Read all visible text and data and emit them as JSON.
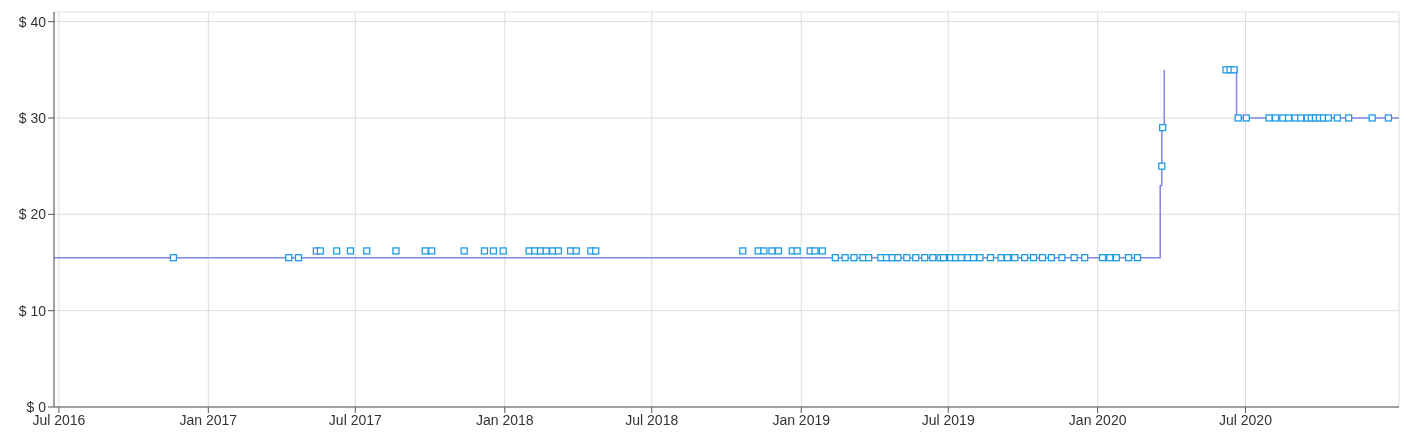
{
  "chart_data": {
    "type": "step",
    "xlim": [
      "2016-06-25",
      "2021-01-06"
    ],
    "xticks": [
      {
        "value": "2016-07-01",
        "label": "Jul 2016"
      },
      {
        "value": "2017-01-01",
        "label": "Jan 2017"
      },
      {
        "value": "2017-07-01",
        "label": "Jul 2017"
      },
      {
        "value": "2018-01-01",
        "label": "Jan 2018"
      },
      {
        "value": "2018-07-01",
        "label": "Jul 2018"
      },
      {
        "value": "2019-01-01",
        "label": "Jan 2019"
      },
      {
        "value": "2019-07-01",
        "label": "Jul 2019"
      },
      {
        "value": "2020-01-01",
        "label": "Jan 2020"
      },
      {
        "value": "2020-07-01",
        "label": "Jul 2020"
      }
    ],
    "ylim": [
      0,
      41
    ],
    "yticks": [
      {
        "value": 0,
        "label": "$ 0"
      },
      {
        "value": 10,
        "label": "$ 10"
      },
      {
        "value": 20,
        "label": "$ 20"
      },
      {
        "value": 30,
        "label": "$ 30"
      },
      {
        "value": 40,
        "label": "$ 40"
      }
    ],
    "grid": true,
    "series": [
      {
        "color": "#8585e0",
        "marker": "none",
        "x": [
          "2016-06-25",
          "2020-03-18",
          "2020-03-20",
          "2020-03-23",
          "2020-03-25",
          "2020-06-07",
          "2020-06-20",
          "2021-01-06"
        ],
        "values": [
          15.5,
          23,
          29,
          35,
          null,
          35,
          30,
          30
        ]
      },
      {
        "type": "scatter",
        "color": "#1e9be6",
        "marker": "square",
        "x": [
          "2016-11-19",
          "2017-04-10",
          "2017-04-22",
          "2017-05-14",
          "2017-05-19",
          "2017-06-08",
          "2017-06-25",
          "2017-07-15",
          "2017-08-20",
          "2017-09-25",
          "2017-10-03",
          "2017-11-12",
          "2017-12-07",
          "2017-12-18",
          "2017-12-30",
          "2018-01-31",
          "2018-02-07",
          "2018-02-14",
          "2018-02-21",
          "2018-03-01",
          "2018-03-08",
          "2018-03-23",
          "2018-03-30",
          "2018-04-17",
          "2018-04-23",
          "2018-10-21",
          "2018-11-09",
          "2018-11-16",
          "2018-11-26",
          "2018-12-04",
          "2018-12-21",
          "2018-12-27",
          "2019-01-12",
          "2019-01-18",
          "2019-01-27",
          "2019-02-12",
          "2019-02-24",
          "2019-03-07",
          "2019-03-18",
          "2019-03-25",
          "2019-04-09",
          "2019-04-16",
          "2019-04-23",
          "2019-04-30",
          "2019-05-11",
          "2019-05-22",
          "2019-06-02",
          "2019-06-12",
          "2019-06-21",
          "2019-06-25",
          "2019-07-04",
          "2019-07-10",
          "2019-07-17",
          "2019-07-25",
          "2019-08-01",
          "2019-08-09",
          "2019-08-22",
          "2019-09-04",
          "2019-09-12",
          "2019-09-21",
          "2019-10-03",
          "2019-10-14",
          "2019-10-25",
          "2019-11-05",
          "2019-11-18",
          "2019-12-03",
          "2019-12-16",
          "2020-01-07",
          "2020-01-16",
          "2020-01-24",
          "2020-02-08",
          "2020-02-19",
          "2020-03-20",
          "2020-03-21",
          "2020-06-07",
          "2020-06-12",
          "2020-06-17",
          "2020-06-22",
          "2020-07-02",
          "2020-07-30",
          "2020-08-07",
          "2020-08-16",
          "2020-08-23",
          "2020-08-31",
          "2020-09-07",
          "2020-09-15",
          "2020-09-20",
          "2020-09-25",
          "2020-09-30",
          "2020-10-05",
          "2020-10-11",
          "2020-10-22",
          "2020-11-05",
          "2020-12-04",
          "2020-12-24"
        ],
        "values": [
          15.5,
          15.5,
          15.5,
          16.2,
          16.2,
          16.2,
          16.2,
          16.2,
          16.2,
          16.2,
          16.2,
          16.2,
          16.2,
          16.2,
          16.2,
          16.2,
          16.2,
          16.2,
          16.2,
          16.2,
          16.2,
          16.2,
          16.2,
          16.2,
          16.2,
          16.2,
          16.2,
          16.2,
          16.2,
          16.2,
          16.2,
          16.2,
          16.2,
          16.2,
          16.2,
          15.5,
          15.5,
          15.5,
          15.5,
          15.5,
          15.5,
          15.5,
          15.5,
          15.5,
          15.5,
          15.5,
          15.5,
          15.5,
          15.5,
          15.5,
          15.5,
          15.5,
          15.5,
          15.5,
          15.5,
          15.5,
          15.5,
          15.5,
          15.5,
          15.5,
          15.5,
          15.5,
          15.5,
          15.5,
          15.5,
          15.5,
          15.5,
          15.5,
          15.5,
          15.5,
          15.5,
          15.5,
          25,
          29,
          35,
          35,
          35,
          30,
          30,
          30,
          30,
          30,
          30,
          30,
          30,
          30,
          30,
          30,
          30,
          30,
          30,
          30,
          30,
          30,
          30
        ]
      }
    ]
  }
}
